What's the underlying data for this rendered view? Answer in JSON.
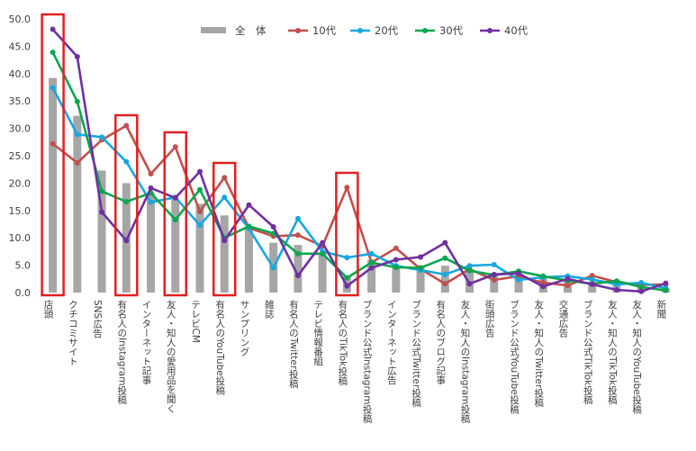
{
  "chart_data": {
    "type": "bar",
    "categories": [
      "店頭",
      "クチコミサイト",
      "SNS広告",
      "有名人のInstagram投稿",
      "インターネット記事",
      "友人・知人の愛用品を聞く",
      "テレビCM",
      "有名人のYouTube投稿",
      "サンプリング",
      "雑誌",
      "有名人のTwitter投稿",
      "テレビ情報番組",
      "有名人のTikTok投稿",
      "ブランド公式Instagram投稿",
      "インターネット広告",
      "ブランド公式Twitter投稿",
      "有名人のブログ記事",
      "友人・知人のInstagram投稿",
      "街頭広告",
      "ブランド公式YouTube投稿",
      "友人・知人のTwitter投稿",
      "交通広告",
      "ブランド公式TikTok投稿",
      "友人・知人のTikTok投稿",
      "友人・知人のYouTube投稿",
      "新聞"
    ],
    "ylim": [
      0,
      50
    ],
    "yticks": [
      "0.0",
      "5.0",
      "10.0",
      "15.0",
      "20.0",
      "25.0",
      "30.0",
      "35.0",
      "40.0",
      "45.0",
      "50.0"
    ],
    "ytick_values": [
      0,
      5,
      10,
      15,
      20,
      25,
      30,
      35,
      40,
      45,
      50
    ],
    "legend_position": "top",
    "grid": false,
    "series": [
      {
        "name": "全　体",
        "kind": "bar",
        "color": "#a6a6a6",
        "values": [
          39.2,
          32.3,
          22.3,
          20.0,
          18.2,
          17.0,
          16.2,
          14.1,
          12.0,
          9.1,
          8.7,
          7.1,
          3.0,
          6.0,
          5.0,
          5.0,
          4.9,
          4.2,
          3.6,
          3.2,
          2.6,
          2.4,
          2.0,
          1.8,
          1.1,
          0.8
        ]
      },
      {
        "name": "10代",
        "kind": "line",
        "color": "#c0504d",
        "values": [
          27.2,
          23.7,
          27.9,
          30.5,
          21.7,
          26.6,
          14.8,
          21.0,
          11.8,
          10.3,
          10.5,
          8.5,
          19.2,
          5.5,
          8.1,
          4.3,
          1.6,
          4.3,
          2.3,
          3.0,
          1.8,
          1.3,
          3.1,
          1.9,
          1.4,
          1.5
        ]
      },
      {
        "name": "20代",
        "kind": "line",
        "color": "#17a7e0",
        "values": [
          37.4,
          28.9,
          28.4,
          23.9,
          16.5,
          17.4,
          12.3,
          17.4,
          11.7,
          4.5,
          13.5,
          7.5,
          6.4,
          7.1,
          4.9,
          4.1,
          3.3,
          4.9,
          5.1,
          2.3,
          2.8,
          3.0,
          2.4,
          1.5,
          1.8,
          0.8
        ]
      },
      {
        "name": "30代",
        "kind": "line",
        "color": "#0aa64f",
        "values": [
          43.9,
          34.9,
          18.5,
          16.6,
          18.2,
          13.3,
          18.8,
          10.0,
          12.1,
          10.8,
          7.1,
          7.1,
          2.7,
          5.5,
          4.6,
          4.5,
          6.3,
          4.0,
          3.2,
          3.9,
          3.0,
          2.2,
          1.6,
          2.1,
          1.0,
          0.4
        ]
      },
      {
        "name": "40代",
        "kind": "line",
        "color": "#7030a0",
        "values": [
          48.1,
          43.1,
          14.7,
          9.5,
          19.1,
          17.3,
          22.1,
          9.5,
          16.0,
          12.0,
          3.1,
          9.1,
          1.2,
          4.5,
          6.0,
          6.5,
          9.1,
          1.6,
          3.3,
          3.5,
          1.1,
          2.5,
          1.5,
          0.5,
          0.2,
          1.7
        ]
      }
    ],
    "highlighted_categories": [
      "店頭",
      "有名人のInstagram投稿",
      "友人・知人の愛用品を聞く",
      "有名人のYouTube投稿",
      "有名人のTikTok投稿"
    ],
    "highlight_color": "#e02020"
  }
}
